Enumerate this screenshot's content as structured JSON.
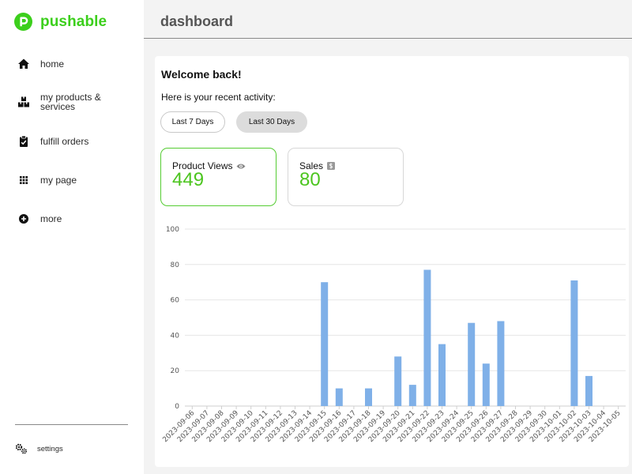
{
  "app": {
    "brand": "pushable",
    "brand_color": "#3ccf1c"
  },
  "sidebar": {
    "items": [
      {
        "label": "home",
        "icon": "home-icon"
      },
      {
        "label": "my products & services",
        "icon": "boxes-icon"
      },
      {
        "label": "fulfill orders",
        "icon": "clipboard-check-icon"
      },
      {
        "label": "my page",
        "icon": "grid-icon"
      },
      {
        "label": "more",
        "icon": "plus-circle-icon"
      }
    ],
    "settings": {
      "label": "settings",
      "icon": "gears-icon"
    }
  },
  "header": {
    "title": "dashboard"
  },
  "main": {
    "welcome": "Welcome back!",
    "subtitle": "Here is your recent activity:",
    "ranges": [
      {
        "label": "Last 7 Days",
        "selected": false
      },
      {
        "label": "Last 30 Days",
        "selected": true
      }
    ],
    "stats": {
      "views": {
        "label": "Product Views",
        "value": "449",
        "icon": "eye-icon",
        "selected": true
      },
      "sales": {
        "label": "Sales",
        "value": "80",
        "icon": "dollar-icon",
        "selected": false
      }
    },
    "accent_color": "#4cc51f"
  },
  "chart_data": {
    "type": "bar",
    "title": "",
    "xlabel": "",
    "ylabel": "",
    "ylim": [
      0,
      100
    ],
    "yticks": [
      0,
      20,
      40,
      60,
      80,
      100
    ],
    "grid": true,
    "bar_color": "#7fb0e8",
    "categories": [
      "2023-09-06",
      "2023-09-07",
      "2023-09-08",
      "2023-09-09",
      "2023-09-10",
      "2023-09-11",
      "2023-09-12",
      "2023-09-13",
      "2023-09-14",
      "2023-09-15",
      "2023-09-16",
      "2023-09-17",
      "2023-09-18",
      "2023-09-19",
      "2023-09-20",
      "2023-09-21",
      "2023-09-22",
      "2023-09-23",
      "2023-09-24",
      "2023-09-25",
      "2023-09-26",
      "2023-09-27",
      "2023-09-28",
      "2023-09-29",
      "2023-09-30",
      "2023-10-01",
      "2023-10-02",
      "2023-10-03",
      "2023-10-04",
      "2023-10-05"
    ],
    "values": [
      0,
      0,
      0,
      0,
      0,
      0,
      0,
      0,
      0,
      70,
      10,
      0,
      10,
      0,
      28,
      12,
      77,
      35,
      0,
      47,
      24,
      48,
      0,
      0,
      0,
      0,
      71,
      17,
      0,
      0
    ]
  }
}
